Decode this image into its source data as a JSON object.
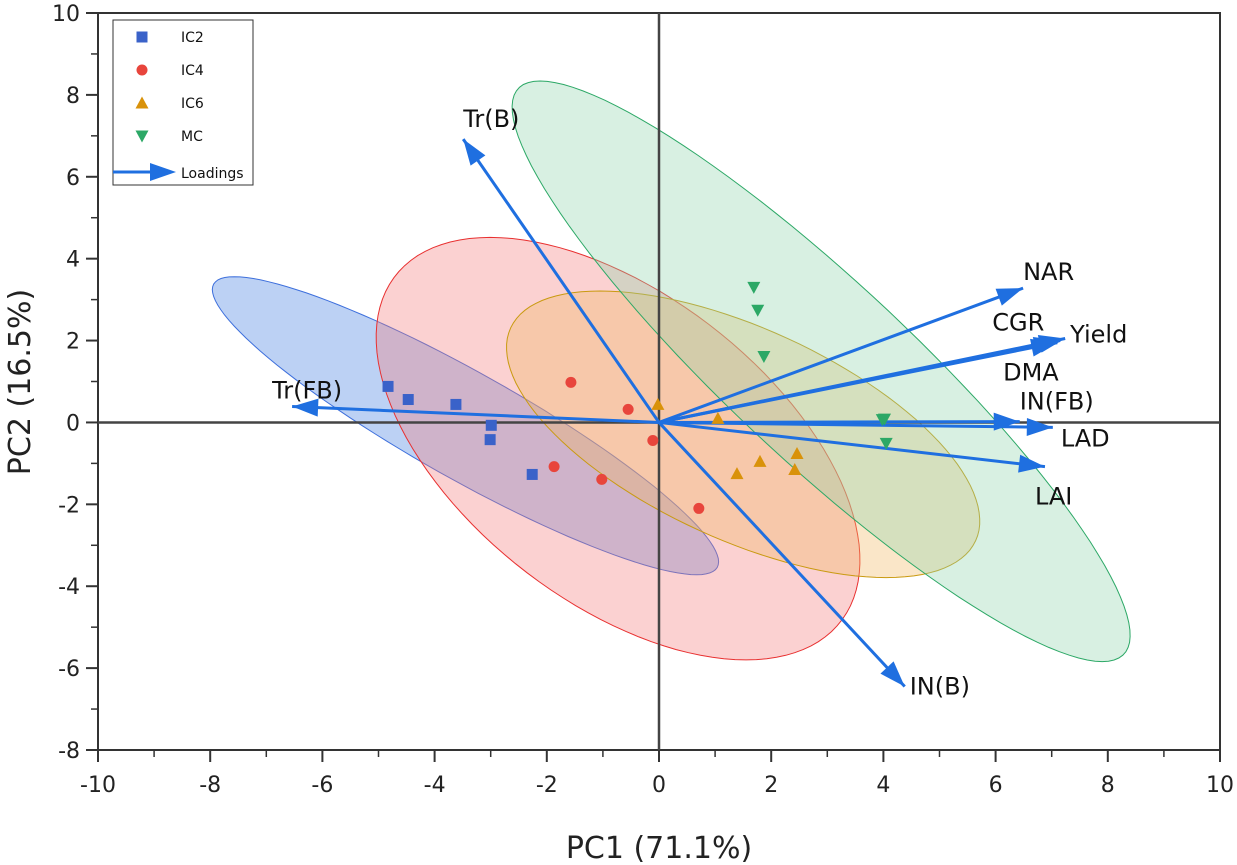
{
  "chart_data": {
    "type": "scatter",
    "title": "",
    "xlabel": "PC1 (71.1%)",
    "ylabel": "PC2 (16.5%)",
    "xlim": [
      -10,
      10
    ],
    "ylim": [
      -8,
      10
    ],
    "xticks": [
      -10,
      -8,
      -6,
      -4,
      -2,
      0,
      2,
      4,
      6,
      8,
      10
    ],
    "yticks": [
      -8,
      -6,
      -4,
      -2,
      0,
      2,
      4,
      6,
      8,
      10
    ],
    "legend_position": "top-left",
    "series": [
      {
        "name": "IC2",
        "marker": "square",
        "color": "#3a62c9",
        "fill": "#3f7be0",
        "stroke": "#3d6fdc",
        "points": [
          [
            -4.83,
            0.88
          ],
          [
            -4.47,
            0.56
          ],
          [
            -3.62,
            0.44
          ],
          [
            -2.99,
            -0.07
          ],
          [
            -3.01,
            -0.42
          ],
          [
            -2.26,
            -1.27
          ]
        ],
        "ellipse": {
          "center": [
            -3.45,
            -0.08
          ],
          "u": [
            1.84,
            0
          ],
          "v": [
            -4.12,
            3.64
          ]
        }
      },
      {
        "name": "IC4",
        "marker": "circle",
        "color": "#e8453c",
        "fill": "#f47a7a",
        "stroke": "#e83030",
        "points": [
          [
            -1.57,
            0.98
          ],
          [
            -0.55,
            0.32
          ],
          [
            -1.87,
            -1.08
          ],
          [
            -1.02,
            -1.39
          ],
          [
            -0.11,
            -0.44
          ],
          [
            0.71,
            -2.1
          ]
        ],
        "ellipse": {
          "center": [
            -0.73,
            -0.64
          ],
          "u": [
            3.66,
            0
          ],
          "v": [
            -2.28,
            5.16
          ]
        }
      },
      {
        "name": "IC6",
        "marker": "triangle-up",
        "color": "#d9920a",
        "fill": "#f0b860",
        "stroke": "#c99a10",
        "points": [
          [
            -0.02,
            0.44
          ],
          [
            1.05,
            0.1
          ],
          [
            1.39,
            -1.25
          ],
          [
            1.8,
            -0.95
          ],
          [
            2.46,
            -0.76
          ],
          [
            2.42,
            -1.15
          ]
        ],
        "ellipse": {
          "center": [
            1.5,
            -0.29
          ],
          "u": [
            3.36,
            0
          ],
          "v": [
            -2.55,
            3.5
          ]
        }
      },
      {
        "name": "MC",
        "marker": "triangle-down",
        "color": "#2ca866",
        "fill": "#8fd3ad",
        "stroke": "#2ca866",
        "points": [
          [
            1.69,
            3.3
          ],
          [
            1.76,
            2.74
          ],
          [
            1.87,
            1.61
          ],
          [
            3.98,
            0.07
          ],
          [
            4.02,
            0.08
          ],
          [
            4.05,
            -0.51
          ]
        ],
        "ellipse": {
          "center": [
            2.89,
            1.25
          ],
          "u": [
            2.29,
            0
          ],
          "v": [
            -5.01,
            7.09
          ]
        }
      }
    ],
    "loadings": {
      "name": "Loadings",
      "color": "#1f6fe0",
      "vectors": [
        {
          "label": "Tr(B)",
          "x": -3.49,
          "y": 6.92
        },
        {
          "label": "Tr(FB)",
          "x": -6.54,
          "y": 0.39
        },
        {
          "label": "IN(B)",
          "x": 4.38,
          "y": -6.45
        },
        {
          "label": "NAR",
          "x": 6.49,
          "y": 3.28
        },
        {
          "label": "CGR",
          "x": 7.1,
          "y": 1.95
        },
        {
          "label": "Yield",
          "x": 7.24,
          "y": 2.05
        },
        {
          "label": "DMA",
          "x": 7.15,
          "y": 2.0
        },
        {
          "label": "IN(FB)",
          "x": 6.43,
          "y": 0.02
        },
        {
          "label": "LAD",
          "x": 7.02,
          "y": -0.12
        },
        {
          "label": "LAI",
          "x": 6.88,
          "y": -1.08
        }
      ]
    }
  }
}
